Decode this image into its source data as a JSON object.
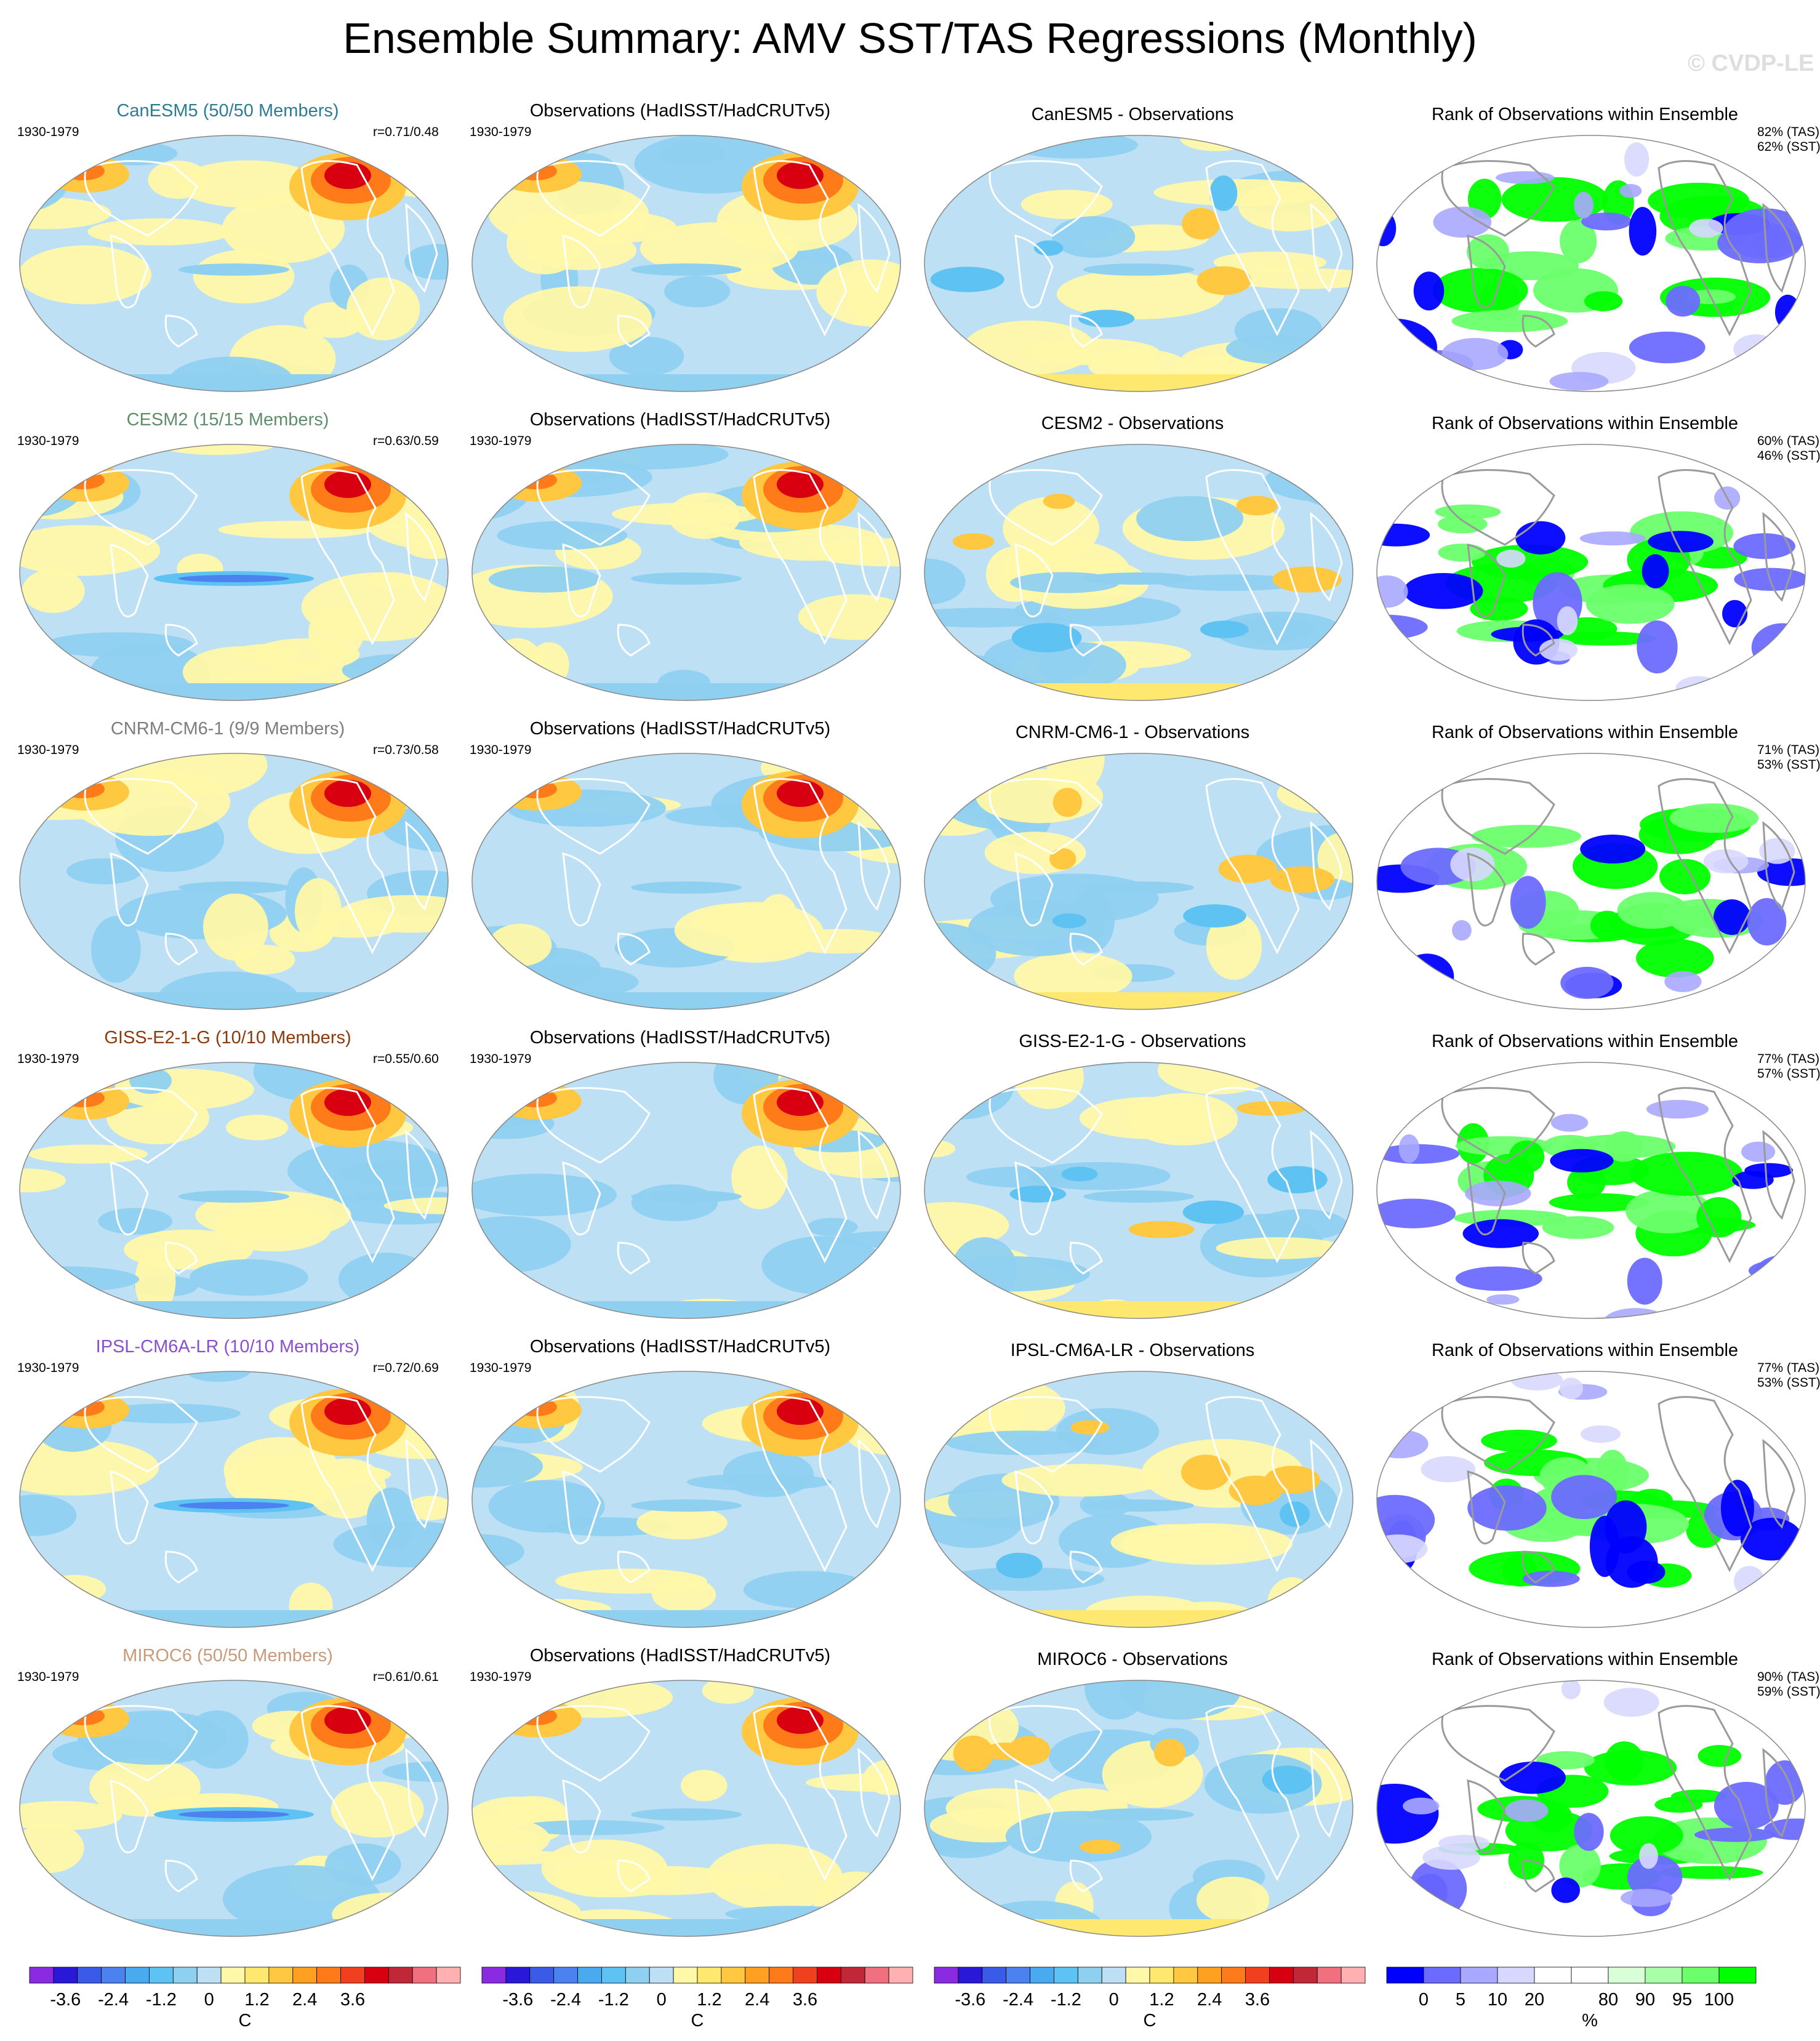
{
  "title": "Ensemble Summary: AMV SST/TAS Regressions (Monthly)",
  "watermark": "© CVDP-LE",
  "period": "1930-1979",
  "obs_title": "Observations (HadISST/HadCRUTv5)",
  "rank_title": "Rank of Observations within Ensemble",
  "rows": [
    {
      "model_title": "CanESM5 (50/50 Members)",
      "color": "#2a7d93",
      "corr": "r=0.71/0.48",
      "diff_title": "CanESM5 - Observations",
      "rank_tas": "82% (TAS)",
      "rank_sst": "62% (SST)"
    },
    {
      "model_title": "CESM2 (15/15 Members)",
      "color": "#5e8e6a",
      "corr": "r=0.63/0.59",
      "diff_title": "CESM2 - Observations",
      "rank_tas": "60% (TAS)",
      "rank_sst": "46% (SST)"
    },
    {
      "model_title": "CNRM-CM6-1 (9/9 Members)",
      "color": "#7d7d7d",
      "corr": "r=0.73/0.58",
      "diff_title": "CNRM-CM6-1 - Observations",
      "rank_tas": "71% (TAS)",
      "rank_sst": "53% (SST)"
    },
    {
      "model_title": "GISS-E2-1-G (10/10 Members)",
      "color": "#8b3a0c",
      "corr": "r=0.55/0.60",
      "diff_title": "GISS-E2-1-G - Observations",
      "rank_tas": "77% (TAS)",
      "rank_sst": "57% (SST)"
    },
    {
      "model_title": "IPSL-CM6A-LR (10/10 Members)",
      "color": "#8a4fd0",
      "corr": "r=0.72/0.69",
      "diff_title": "IPSL-CM6A-LR - Observations",
      "rank_tas": "77% (TAS)",
      "rank_sst": "53% (SST)"
    },
    {
      "model_title": "MIROC6 (50/50 Members)",
      "color": "#c99a7a",
      "corr": "r=0.61/0.61",
      "diff_title": "MIROC6 - Observations",
      "rank_tas": "90% (TAS)",
      "rank_sst": "59% (SST)"
    }
  ],
  "colors": {
    "anomaly_levels": [
      "#8a2be2",
      "#2a18d8",
      "#3a5ae8",
      "#4c82f0",
      "#4aaaf0",
      "#5ec2f2",
      "#8fd0f0",
      "#bde0f4",
      "#fff8a8",
      "#ffe870",
      "#ffc840",
      "#ffa020",
      "#ff7a18",
      "#f04020",
      "#d80010",
      "#c02838",
      "#f07080",
      "#ffb0b0"
    ],
    "rank_levels": [
      "#0000ff",
      "#6b6bff",
      "#a8a8ff",
      "#d8d8ff",
      "#ffffff",
      "#ffffff",
      "#d8ffd8",
      "#a8ffa8",
      "#6bff6b",
      "#00ff00"
    ],
    "land_outline": "#b0b0b0"
  },
  "chart_data": [
    {
      "type": "heatmap",
      "description_scope": "model, observations and difference maps (3 columns x 6 rows)",
      "colorbar_unit": "C",
      "colorbar_ticks": [
        "-3.6",
        "-2.4",
        "-1.2",
        "0",
        "1.2",
        "2.4",
        "3.6"
      ]
    },
    {
      "type": "heatmap",
      "description_scope": "rank of observations within ensemble maps (column 4 x 6 rows)",
      "colorbar_unit": "%",
      "colorbar_ticks": [
        "0",
        "5",
        "10",
        "20",
        "80",
        "90",
        "95",
        "100"
      ]
    }
  ]
}
